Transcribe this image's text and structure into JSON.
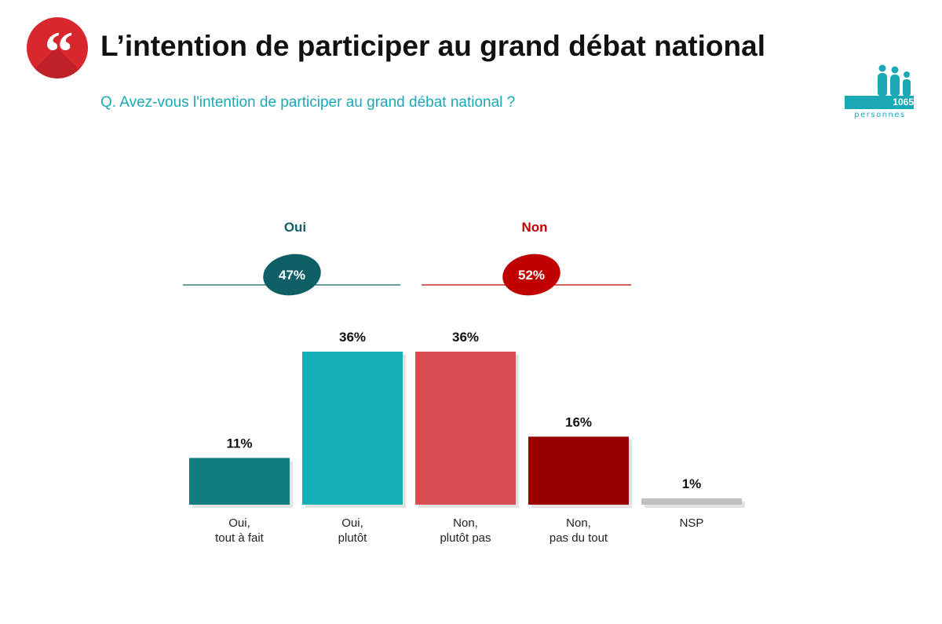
{
  "header": {
    "title": "L’intention de participer au grand débat national",
    "question": "Q. Avez-vous l'intention de participer au grand débat national ?",
    "quote_icon": "quote-mark-icon",
    "accent_color": "#d9272e"
  },
  "sample": {
    "count": "1065",
    "unit": "personnes",
    "icon": "people-group-icon",
    "color": "#1aa9b4"
  },
  "chart_data": {
    "type": "bar",
    "categories": [
      "Oui,\ntout à fait",
      "Oui,\nplutôt",
      "Non,\nplutôt pas",
      "Non,\npas du tout",
      "NSP"
    ],
    "values": [
      11,
      36,
      36,
      16,
      1
    ],
    "value_labels": [
      "11%",
      "36%",
      "36%",
      "16%",
      "1%"
    ],
    "colors": [
      "#137b82",
      "#14b0b8",
      "#d94d52",
      "#990000",
      "#bfbfbf"
    ],
    "ylim": [
      0,
      36
    ],
    "groups": [
      {
        "label": "Oui",
        "total": "47%",
        "color": "#0f5f66",
        "span": [
          0,
          1
        ]
      },
      {
        "label": "Non",
        "total": "52%",
        "color": "#c00000",
        "span": [
          2,
          3
        ]
      }
    ]
  }
}
